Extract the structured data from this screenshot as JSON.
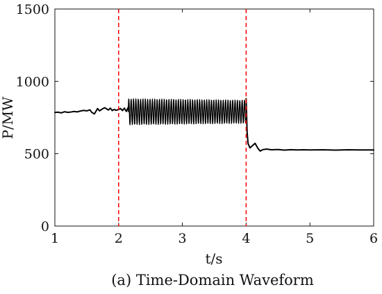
{
  "chart_data": {
    "type": "line",
    "caption": "(a) Time-Domain Waveform",
    "xlabel": "t/s",
    "ylabel": "P/MW",
    "xlim": [
      1,
      6
    ],
    "ylim": [
      0,
      1500
    ],
    "xticks": [
      1,
      2,
      3,
      4,
      5,
      6
    ],
    "yticks": [
      0,
      500,
      1000,
      1500
    ],
    "grid": false,
    "colors": {
      "signal": "#000000",
      "markers": "#ff0000"
    },
    "series": [
      {
        "segments": [
          {
            "t_start": 1.0,
            "t_end": 2.0,
            "points": [
              [
                1.0,
                785
              ],
              [
                1.05,
                787
              ],
              [
                1.1,
                782
              ],
              [
                1.15,
                790
              ],
              [
                1.2,
                786
              ],
              [
                1.25,
                788
              ],
              [
                1.3,
                792
              ],
              [
                1.35,
                789
              ],
              [
                1.4,
                795
              ],
              [
                1.45,
                799
              ],
              [
                1.5,
                796
              ],
              [
                1.55,
                803
              ],
              [
                1.58,
                785
              ],
              [
                1.62,
                775
              ],
              [
                1.64,
                790
              ],
              [
                1.67,
                812
              ],
              [
                1.7,
                796
              ],
              [
                1.74,
                808
              ],
              [
                1.78,
                818
              ],
              [
                1.81,
                810
              ],
              [
                1.84,
                802
              ],
              [
                1.87,
                815
              ],
              [
                1.9,
                798
              ],
              [
                1.93,
                806
              ],
              [
                1.96,
                800
              ],
              [
                2.0,
                805
              ]
            ]
          },
          {
            "t_start": 2.0,
            "t_end": 2.15,
            "points": [
              [
                2.0,
                805
              ],
              [
                2.03,
                812
              ],
              [
                2.06,
                798
              ],
              [
                2.09,
                815
              ],
              [
                2.12,
                792
              ],
              [
                2.15,
                820
              ]
            ]
          },
          {
            "t_start": 2.15,
            "t_end": 4.0,
            "oscillation": {
              "center": 790,
              "amplitude_start": 90,
              "amplitude_end": 80,
              "frequency_hz": 27
            }
          },
          {
            "t_start": 4.0,
            "t_end": 6.0,
            "points": [
              [
                4.0,
                880
              ],
              [
                4.015,
                650
              ],
              [
                4.03,
                570
              ],
              [
                4.06,
                540
              ],
              [
                4.1,
                556
              ],
              [
                4.14,
                572
              ],
              [
                4.18,
                540
              ],
              [
                4.22,
                518
              ],
              [
                4.26,
                528
              ],
              [
                4.32,
                532
              ],
              [
                4.4,
                527
              ],
              [
                4.5,
                529
              ],
              [
                4.6,
                525
              ],
              [
                4.7,
                528
              ],
              [
                4.8,
                526
              ],
              [
                4.9,
                527
              ],
              [
                5.0,
                526
              ],
              [
                5.2,
                527
              ],
              [
                5.4,
                525
              ],
              [
                5.6,
                527
              ],
              [
                5.8,
                526
              ],
              [
                6.0,
                526
              ]
            ]
          }
        ]
      }
    ],
    "vlines": [
      2,
      4
    ]
  }
}
